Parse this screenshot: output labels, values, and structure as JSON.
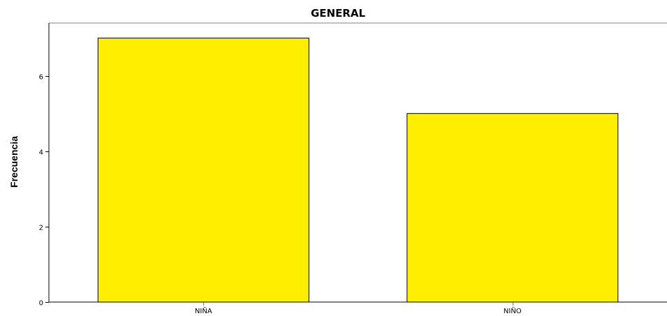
{
  "chart_data": {
    "type": "bar",
    "title": "GENERAL",
    "xlabel": "",
    "ylabel": "Frecuencia",
    "categories": [
      "NIÑA",
      "NIÑO"
    ],
    "values": [
      7,
      5
    ],
    "ylim": [
      0,
      7.4
    ],
    "yticks": [
      0,
      2,
      4,
      6
    ],
    "grid": false,
    "colors": {
      "bar_fill": "#ffee00",
      "bar_stroke": "#000000",
      "frame": "#808080",
      "background": "#ffffff"
    }
  }
}
